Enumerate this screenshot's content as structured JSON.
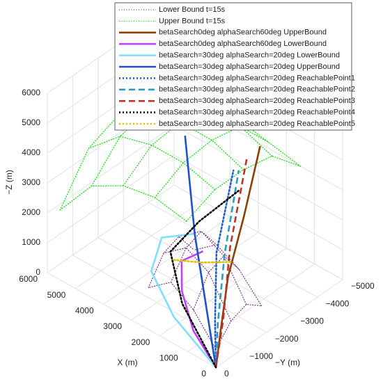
{
  "chart_data": {
    "type": "line3d",
    "xlabel": "X (m)",
    "ylabel": "−Y (m)",
    "zlabel": "−Z (m)",
    "xlim": [
      0,
      6000
    ],
    "ylim": [
      -5000,
      0
    ],
    "zlim": [
      0,
      6000
    ],
    "xticks": [
      0,
      1000,
      2000,
      3000,
      4000,
      5000,
      6000
    ],
    "yticks": [
      {
        "value": -5000,
        "label": "−5000"
      },
      {
        "value": -4000,
        "label": "−4000"
      },
      {
        "value": -3000,
        "label": "−3000"
      },
      {
        "value": -2000,
        "label": "−2000"
      },
      {
        "value": -1000,
        "label": "−1000"
      },
      0
    ],
    "zticks": [
      0,
      1000,
      2000,
      3000,
      4000,
      5000,
      6000
    ],
    "grid": true,
    "legend": "top",
    "series": [
      {
        "name": "Lower Bound t=15s",
        "color": "#7e2f8e",
        "style": "dotted",
        "kind": "surface",
        "x": [
          0,
          800,
          1600,
          2400
        ],
        "y": [
          0,
          -600,
          -1200,
          -1800
        ],
        "z": [
          [
            600,
            1200,
            1400,
            1000
          ],
          [
            1500,
            2400,
            2600,
            1800
          ],
          [
            2000,
            2800,
            3000,
            2200
          ],
          [
            1400,
            2200,
            2400,
            1600
          ]
        ]
      },
      {
        "name": "Upper Bound t=15s",
        "color": "#00dd00",
        "style": "dotted",
        "kind": "surface",
        "x": [
          1500,
          2625,
          3750,
          4875,
          6000
        ],
        "y": [
          -500,
          -1625,
          -2750,
          -3875,
          -5000
        ],
        "z": [
          [
            3800,
            4200,
            4200,
            4000,
            3000
          ],
          [
            4000,
            4500,
            4600,
            4400,
            3200
          ],
          [
            3800,
            4500,
            4600,
            4500,
            3400
          ],
          [
            3200,
            4200,
            4400,
            4200,
            3000
          ],
          [
            1800,
            3200,
            3600,
            3200,
            2200
          ]
        ]
      },
      {
        "name": "betaSearch0deg alphaSearch60deg UpperBound",
        "color": "#8b4000",
        "style": "solid",
        "x": [
          0,
          100,
          200,
          350,
          500
        ],
        "y": [
          0,
          -300,
          -700,
          -1500,
          -2300
        ],
        "z": [
          0,
          1000,
          2500,
          4000,
          5780
        ]
      },
      {
        "name": "betaSearch0deg alphaSearch60deg LowerBound",
        "color": "#c040ff",
        "style": "solid",
        "x": [
          0,
          800,
          1300,
          1400,
          1000
        ],
        "y": [
          0,
          0,
          -100,
          -200,
          -600
        ],
        "z": [
          0,
          800,
          1800,
          2700,
          3000
        ]
      },
      {
        "name": "betaSearch=30deg alphaSearch=20deg LowerBound",
        "color": "#80dfff",
        "style": "solid",
        "x": [
          0,
          1500,
          2300,
          2200,
          1500
        ],
        "y": [
          0,
          0,
          0,
          -300,
          -800
        ],
        "z": [
          0,
          900,
          2000,
          3000,
          3200
        ]
      },
      {
        "name": "betaSearch=30deg alphaSearch=20deg UpperBound",
        "color": "#2050d0",
        "style": "solid",
        "x": [
          0,
          500,
          1200,
          2000
        ],
        "y": [
          0,
          -200,
          -500,
          -1000
        ],
        "z": [
          0,
          1500,
          3500,
          6100
        ]
      },
      {
        "name": "betaSearch=30deg alphaSearch=20deg ReachablePoint1",
        "color": "#1f5fd0",
        "style": "dotted",
        "x": [
          0,
          300,
          700,
          1000
        ],
        "y": [
          0,
          -300,
          -800,
          -1800
        ],
        "z": [
          0,
          1200,
          3000,
          5000
        ]
      },
      {
        "name": "betaSearch=30deg alphaSearch=20deg ReachablePoint2",
        "color": "#2a9ec0",
        "style": "dashed",
        "x": [
          0,
          200,
          500,
          900
        ],
        "y": [
          0,
          -300,
          -900,
          -1900
        ],
        "z": [
          0,
          1200,
          3000,
          5000
        ]
      },
      {
        "name": "betaSearch=30deg alphaSearch=20deg ReachablePoint3",
        "color": "#c0302a",
        "style": "dashed",
        "x": [
          0,
          100,
          400,
          800
        ],
        "y": [
          0,
          -400,
          -1000,
          -2100
        ],
        "z": [
          0,
          1300,
          3200,
          5300
        ]
      },
      {
        "name": "betaSearch=30deg alphaSearch=20deg ReachablePoint4",
        "color": "#000000",
        "style": "dotted",
        "x": [
          0,
          1200,
          1800,
          1500,
          1000
        ],
        "y": [
          0,
          0,
          -200,
          -1000,
          -2000
        ],
        "z": [
          0,
          1500,
          2800,
          3500,
          4200
        ]
      },
      {
        "name": "betaSearch=30deg alphaSearch=20deg ReachablePoint5",
        "color": "#e0c000",
        "style": "dotted",
        "x": [
          1500,
          1200,
          1000
        ],
        "y": [
          0,
          -800,
          -1700
        ],
        "z": [
          2800,
          2400,
          2000
        ]
      }
    ]
  }
}
